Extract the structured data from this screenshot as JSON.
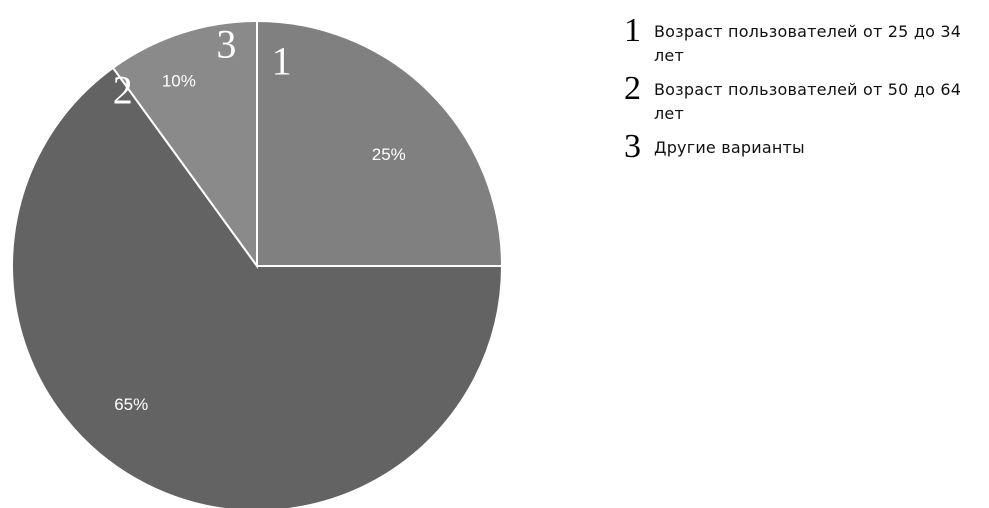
{
  "chart_data": {
    "type": "pie",
    "slices": [
      {
        "number": "1",
        "value": 25,
        "label": "25%",
        "color": "#808080"
      },
      {
        "number": "2",
        "value": 65,
        "label": "65%",
        "color": "#636363"
      },
      {
        "number": "3",
        "value": 10,
        "label": "10%",
        "color": "#8a8a8a"
      }
    ],
    "legend": [
      {
        "number": "1",
        "text": "Возраст пользователей от 25 до 34 лет"
      },
      {
        "number": "2",
        "text": "Возраст пользователей от 50 до 64 лет"
      },
      {
        "number": "3",
        "text": "Другие варианты"
      }
    ],
    "legend_position": "top-right",
    "start_angle": "12 o'clock",
    "direction": "clockwise",
    "border_color": "#ffffff"
  }
}
